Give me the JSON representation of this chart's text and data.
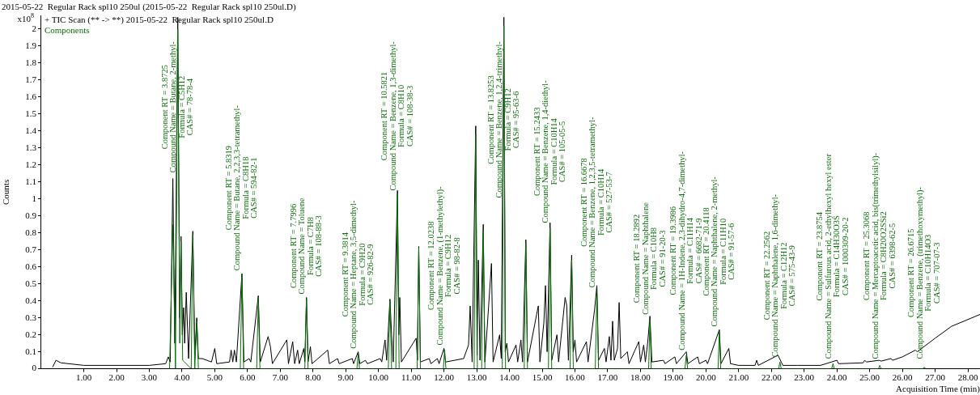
{
  "chart_data": {
    "type": "line",
    "title": "2015-05-22  Regular Rack spl10 250ul (2015-05-22  Regular Rack spl10 250ul.D)",
    "xlabel": "Acquisition Time (min)",
    "ylabel": "Counts",
    "xlim": [
      -0.3,
      28.37
    ],
    "ylim": [
      0,
      2.08
    ],
    "xticks": [
      {
        "value": 1,
        "label": "1.00"
      },
      {
        "value": 2,
        "label": "2.00"
      },
      {
        "value": 3,
        "label": "3.00"
      },
      {
        "value": 4,
        "label": "4.00"
      },
      {
        "value": 5,
        "label": "5.00"
      },
      {
        "value": 6,
        "label": "6.00"
      },
      {
        "value": 7,
        "label": "7.00"
      },
      {
        "value": 8,
        "label": "8.00"
      },
      {
        "value": 9,
        "label": "9.00"
      },
      {
        "value": 10,
        "label": "10.00"
      },
      {
        "value": 11,
        "label": "11.00"
      },
      {
        "value": 12,
        "label": "12.00"
      },
      {
        "value": 13,
        "label": "13.00"
      },
      {
        "value": 14,
        "label": "14.00"
      },
      {
        "value": 15,
        "label": "15.00"
      },
      {
        "value": 16,
        "label": "16.00"
      },
      {
        "value": 17,
        "label": "17.00"
      },
      {
        "value": 18,
        "label": "18.00"
      },
      {
        "value": 19,
        "label": "19.00"
      },
      {
        "value": 20,
        "label": "20.00"
      },
      {
        "value": 21,
        "label": "21.00"
      },
      {
        "value": 22,
        "label": "22.00"
      },
      {
        "value": 23,
        "label": "23.00"
      },
      {
        "value": 24,
        "label": "24.00"
      },
      {
        "value": 25,
        "label": "25.00"
      },
      {
        "value": 26,
        "label": "26.00"
      },
      {
        "value": 27,
        "label": "27.00"
      },
      {
        "value": 28,
        "label": "28.00"
      }
    ],
    "yticks": [
      0,
      0.1,
      0.2,
      0.3,
      0.4,
      0.5,
      0.6,
      0.7,
      0.8,
      0.9,
      1,
      1.1,
      1.2,
      1.3,
      1.4,
      1.5,
      1.6,
      1.7,
      1.8,
      1.9,
      2
    ],
    "legend": "top left",
    "series": [
      {
        "name": "+ TIC Scan (** -> **) 2015-05-22  Regular Rack spl10 250ul.D",
        "color": "#000000",
        "x": [
          0.05,
          0.15,
          0.3,
          1.0,
          3.0,
          3.5,
          3.58,
          3.64,
          3.72,
          3.78,
          3.87,
          3.93,
          3.97,
          4.01,
          4.05,
          4.08,
          4.13,
          4.2,
          4.33,
          4.39,
          4.45,
          4.5,
          4.62,
          4.9,
          5.0,
          5.06,
          5.45,
          5.5,
          5.55,
          5.6,
          5.66,
          5.83,
          5.89,
          6.05,
          6.1,
          6.33,
          6.39,
          6.63,
          6.7,
          6.76,
          7.2,
          7.25,
          7.38,
          7.44,
          7.53,
          7.58,
          7.72,
          7.75,
          7.8,
          7.85,
          7.92,
          7.97,
          8.45,
          8.5,
          8.75,
          8.8,
          9.2,
          9.24,
          9.38,
          9.43,
          9.6,
          9.66,
          10.05,
          10.1,
          10.2,
          10.25,
          10.35,
          10.4,
          10.45,
          10.58,
          10.62,
          10.65,
          10.7,
          11.15,
          11.19,
          11.23,
          11.28,
          11.55,
          11.6,
          11.8,
          11.85,
          12.0,
          12.05,
          12.6,
          12.75,
          12.8,
          12.86,
          12.97,
          13.01,
          13.05,
          13.1,
          13.2,
          13.25,
          13.45,
          13.5,
          13.7,
          13.75,
          13.83,
          13.87,
          13.92,
          13.97,
          14.2,
          14.25,
          14.35,
          14.4,
          14.5,
          14.55,
          14.88,
          14.93,
          15.05,
          15.1,
          15.15,
          15.24,
          15.29,
          15.45,
          15.5,
          15.7,
          15.75,
          15.8,
          15.9,
          15.95,
          16.0,
          16.05,
          16.35,
          16.4,
          16.6,
          16.67,
          16.72,
          16.9,
          16.95,
          17.05,
          17.1,
          17.15,
          17.2,
          17.3,
          17.35,
          17.4,
          17.6,
          17.65,
          17.95,
          18.0,
          18.1,
          18.15,
          18.22,
          18.29,
          18.35,
          18.7,
          18.75,
          19.05,
          19.1,
          19.4,
          19.45,
          19.75,
          19.8,
          20.0,
          20.05,
          20.41,
          20.46,
          20.7,
          20.75,
          21.0,
          21.5,
          21.55,
          21.6,
          22.2,
          22.3,
          22.35,
          22.8,
          23.5,
          24.0,
          24.05,
          24.8,
          24.85,
          24.9,
          25.3,
          25.35,
          25.65,
          25.7,
          26.0,
          26.4,
          26.45,
          27.0,
          27.5,
          28.0,
          28.37
        ],
        "values": [
          0.01,
          0.05,
          0.035,
          0.02,
          0.02,
          0.03,
          0.07,
          0.04,
          1.12,
          0.15,
          2.07,
          0.3,
          0.78,
          0.2,
          0.36,
          0.15,
          0.45,
          0.06,
          0.81,
          0.08,
          0.3,
          0.06,
          0.06,
          0.04,
          0.12,
          0.03,
          0.04,
          0.11,
          0.04,
          0.11,
          0.04,
          0.56,
          0.04,
          0.06,
          0.04,
          0.43,
          0.04,
          0.19,
          0.13,
          0.03,
          0.17,
          0.03,
          0.16,
          0.03,
          0.11,
          0.03,
          0.12,
          0.04,
          0.42,
          0.04,
          0.13,
          0.03,
          0.11,
          0.03,
          0.06,
          0.03,
          0.06,
          0.03,
          0.1,
          0.03,
          0.05,
          0.03,
          0.06,
          0.04,
          0.17,
          0.05,
          0.41,
          0.2,
          0.04,
          1.05,
          0.2,
          0.42,
          0.04,
          0.18,
          0.05,
          0.72,
          0.04,
          0.06,
          0.03,
          0.06,
          0.03,
          0.12,
          0.04,
          0.06,
          0.14,
          0.37,
          0.04,
          1.43,
          0.08,
          0.64,
          0.05,
          0.85,
          0.04,
          0.62,
          0.04,
          0.2,
          0.06,
          2.07,
          0.1,
          0.15,
          0.04,
          0.14,
          0.04,
          0.17,
          0.04,
          0.76,
          0.04,
          0.37,
          0.04,
          0.27,
          0.49,
          0.1,
          0.86,
          0.05,
          0.2,
          0.04,
          0.42,
          0.37,
          0.05,
          0.67,
          0.1,
          0.17,
          0.04,
          0.16,
          0.04,
          0.35,
          0.49,
          0.05,
          0.12,
          0.04,
          0.19,
          0.05,
          0.28,
          0.05,
          0.12,
          0.39,
          0.06,
          0.1,
          0.03,
          0.16,
          0.04,
          0.14,
          0.04,
          0.15,
          0.31,
          0.04,
          0.05,
          0.03,
          0.07,
          0.03,
          0.1,
          0.03,
          0.07,
          0.03,
          0.05,
          0.03,
          0.23,
          0.03,
          0.12,
          0.03,
          0.02,
          0.02,
          0.05,
          0.02,
          0.08,
          0.04,
          0.02,
          0.02,
          0.02,
          0.05,
          0.03,
          0.035,
          0.05,
          0.04,
          0.05,
          0.045,
          0.06,
          0.05,
          0.07,
          0.11,
          0.1,
          0.18,
          0.25,
          0.29,
          0.32
        ]
      },
      {
        "name": "Components",
        "color": "#0b6e0b",
        "x": [
          3.62,
          3.72,
          3.8,
          3.87,
          3.93,
          3.97,
          4.02,
          4.28,
          4.33,
          4.39,
          4.45,
          4.5,
          5.78,
          5.83,
          5.88,
          6.28,
          6.33,
          6.38,
          7.75,
          7.8,
          7.85,
          9.34,
          9.38,
          9.42,
          10.3,
          10.35,
          10.4,
          10.53,
          10.58,
          10.63,
          11.18,
          11.23,
          11.28,
          11.98,
          12.02,
          12.06,
          12.92,
          12.97,
          13.02,
          13.15,
          13.2,
          13.25,
          13.78,
          13.83,
          13.88,
          14.45,
          14.5,
          14.55,
          15.19,
          15.24,
          15.29,
          15.85,
          15.9,
          15.95,
          16.62,
          16.67,
          16.72,
          18.25,
          18.29,
          18.33,
          19.36,
          19.4,
          19.44,
          20.37,
          20.41,
          20.45,
          22.22,
          22.26,
          22.3,
          23.84,
          23.88,
          23.92,
          25.27,
          25.31,
          25.35,
          26.63,
          26.67,
          26.71
        ],
        "values": [
          0,
          0.85,
          0,
          2.0,
          0.15,
          0.75,
          0.05,
          0,
          0.79,
          0,
          0.28,
          0,
          0,
          0.55,
          0,
          0,
          0.42,
          0,
          0,
          0.41,
          0,
          0,
          0.09,
          0,
          0,
          0.4,
          0,
          0,
          1.03,
          0,
          0,
          0.71,
          0,
          0,
          0.11,
          0,
          0,
          1.38,
          0,
          0,
          0.82,
          0,
          0,
          2.02,
          0,
          0,
          0.74,
          0,
          0,
          0.83,
          0,
          0,
          0.64,
          0,
          0,
          0.45,
          0,
          0,
          0.29,
          0,
          0,
          0.08,
          0,
          0,
          0.22,
          0,
          0,
          0.04,
          0,
          0,
          0.03,
          0,
          0,
          0.02,
          0,
          0,
          0.01,
          0
        ]
      }
    ],
    "annotations": [
      "x10$^{8}$",
      {
        "text": "Component RT = 3.8725\nCompound Name = Butane, 2-methyl-\nFormula = C5H12\nCAS# = 78-78-4",
        "x": 3.87,
        "y": 2.0
      },
      {
        "text": "Component RT = 5.8319\nCompound Name = Butane, 2,2,3,3-tetramethyl-\nFormula = C8H18\nCAS# = 594-82-1",
        "x": 5.83,
        "y": 0.55
      },
      {
        "text": "Component RT = 7.7996\nCompound Name = Toluene\nFormula = C7H8\nCAS# = 108-88-3",
        "x": 7.8,
        "y": 0.41
      },
      {
        "text": "Component RT = 9.3814\nCompound Name = Heptane, 3,5-dimethyl-\nFormula = C9H20\nCAS# = 926-82-9",
        "x": 9.38,
        "y": 0.09
      },
      {
        "text": "Component RT = 10.5821\nCompound Name = Benzene, 1,3-dimethyl-\nFormula = C8H10\nCAS# = 108-38-3",
        "x": 10.58,
        "y": 1.03
      },
      {
        "text": "Component RT = 12.0238\nCompound Name = Benzene, (1-methylethyl)-\nFormula = C9H12\nCAS# = 98-82-8",
        "x": 12.02,
        "y": 0.11
      },
      {
        "text": "Component RT = 13.8253\nCompound Name = Benzene, 1,2,4-trimethyl-\nFormula = C9H12\nCAS# = 95-63-6",
        "x": 13.83,
        "y": 2.02
      },
      {
        "text": "Component RT = 15.2433\nCompound Name = Benzene, 1,4-diethyl-\nFormula = C10H14\nCAS# = 105-05-5",
        "x": 15.24,
        "y": 0.83
      },
      {
        "text": "Component RT = 16.6678\nCompound Name = Benzene, 1,2,3,5-tetramethyl-\nFormula = C10H14\nCAS# = 527-53-7",
        "x": 16.67,
        "y": 0.45
      },
      {
        "text": "Component RT = 18.2892\nCompound Name = Naphthalene\nFormula = C10H8\nCAS# = 91-20-3",
        "x": 18.29,
        "y": 0.29
      },
      {
        "text": "Component RT = 19.3986\nCompound Name = 1H-Indene, 2,3-dihydro-4,7-dimethyl-\nFormula = C11H14\nCAS# = 6682-71-9",
        "x": 19.4,
        "y": 0.08
      },
      {
        "text": "Component RT = 20.4118\nCompound Name = Naphthalene, 2-methyl-\nFormula = C11H10\nCAS# = 91-57-6",
        "x": 20.41,
        "y": 0.22
      },
      {
        "text": "Component RT = 22.2562\nCompound Name = Naphthalene, 1,6-dimethyl-\nFormula = C12H12\nCAS# = 575-43-9",
        "x": 22.26,
        "y": 0.04
      },
      {
        "text": "Component RT = 23.8754\nCompound Name = Sulfurous acid, 2-ethylhexyl hexyl ester\nFormula = C14H30O3S\nCAS# = 1000309-20-2",
        "x": 23.88,
        "y": 0.03
      },
      {
        "text": "Component RT = 25.3068\nCompound Name = Mercaptoacetic acid, bis(trimethylsilyl)-\nFormula = C8H20O2SSi2\nCAS# = 6398-62-5",
        "x": 25.31,
        "y": 0.02
      },
      {
        "text": "Component RT = 26.6715\nCompound Name = Benzene, (trimethoxymethyl)-\nFormula = C10H14O3\nCAS# = 707-07-3",
        "x": 26.67,
        "y": 0.01
      }
    ]
  }
}
